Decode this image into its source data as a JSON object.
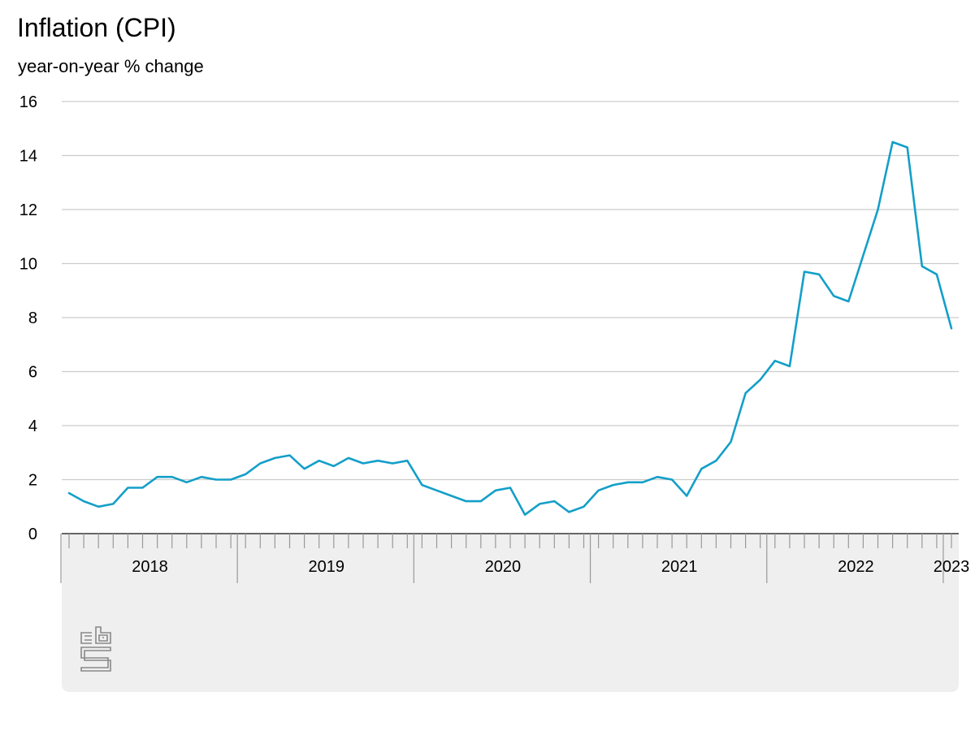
{
  "title": "Inflation (CPI)",
  "subtitle": "year-on-year % change",
  "colors": {
    "line": "#139fc8",
    "grid": "#cccccc",
    "axis_panel": "#efefef",
    "axis_tick": "#999999",
    "axis_line": "#666666",
    "logo": "#888888"
  },
  "logo_icon": "cbs-logo",
  "chart_data": {
    "type": "line",
    "title": "Inflation (CPI)",
    "ylabel": "year-on-year % change",
    "xlabel": "",
    "ylim": [
      0,
      16
    ],
    "yticks": [
      0,
      2,
      4,
      6,
      8,
      10,
      12,
      14,
      16
    ],
    "grid": true,
    "x_start": "2018-01",
    "x_end": "2023-01",
    "year_labels": [
      "2018",
      "2019",
      "2020",
      "2021",
      "2022",
      "2023"
    ],
    "x": [
      "2018-01",
      "2018-02",
      "2018-03",
      "2018-04",
      "2018-05",
      "2018-06",
      "2018-07",
      "2018-08",
      "2018-09",
      "2018-10",
      "2018-11",
      "2018-12",
      "2019-01",
      "2019-02",
      "2019-03",
      "2019-04",
      "2019-05",
      "2019-06",
      "2019-07",
      "2019-08",
      "2019-09",
      "2019-10",
      "2019-11",
      "2019-12",
      "2020-01",
      "2020-02",
      "2020-03",
      "2020-04",
      "2020-05",
      "2020-06",
      "2020-07",
      "2020-08",
      "2020-09",
      "2020-10",
      "2020-11",
      "2020-12",
      "2021-01",
      "2021-02",
      "2021-03",
      "2021-04",
      "2021-05",
      "2021-06",
      "2021-07",
      "2021-08",
      "2021-09",
      "2021-10",
      "2021-11",
      "2021-12",
      "2022-01",
      "2022-02",
      "2022-03",
      "2022-04",
      "2022-05",
      "2022-06",
      "2022-07",
      "2022-08",
      "2022-09",
      "2022-10",
      "2022-11",
      "2022-12",
      "2023-01"
    ],
    "series": [
      {
        "values": [
          1.5,
          1.2,
          1.0,
          1.1,
          1.7,
          1.7,
          2.1,
          2.1,
          1.9,
          2.1,
          2.0,
          2.0,
          2.2,
          2.6,
          2.8,
          2.9,
          2.4,
          2.7,
          2.5,
          2.8,
          2.6,
          2.7,
          2.6,
          2.7,
          1.8,
          1.6,
          1.4,
          1.2,
          1.2,
          1.6,
          1.7,
          0.7,
          1.1,
          1.2,
          0.8,
          1.0,
          1.6,
          1.8,
          1.9,
          1.9,
          2.1,
          2.0,
          1.4,
          2.4,
          2.7,
          3.4,
          5.2,
          5.7,
          6.4,
          6.2,
          9.7,
          9.6,
          8.8,
          8.6,
          10.3,
          12.0,
          14.5,
          14.3,
          9.9,
          9.6,
          7.6
        ]
      }
    ]
  }
}
